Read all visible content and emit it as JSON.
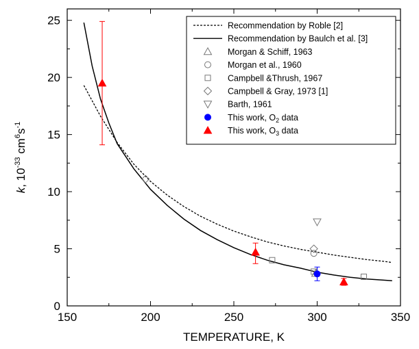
{
  "chart_data": {
    "type": "scatter",
    "xlabel": "TEMPERATURE, K",
    "ylabel_parts": {
      "symbol": "k",
      "prefix": ", 10",
      "exp1": "-33",
      "mid": " cm",
      "exp2": "6",
      "mid2": "s",
      "exp3": "-1"
    },
    "xlim": [
      150,
      350
    ],
    "ylim": [
      0,
      26
    ],
    "x_ticks": [
      150,
      200,
      250,
      300,
      350
    ],
    "y_ticks": [
      0,
      5,
      10,
      15,
      20,
      25
    ],
    "lines": [
      {
        "name": "Recommendation by Roble [2]",
        "style": "dashed",
        "color": "#000000",
        "x": [
          160,
          170,
          180,
          190,
          200,
          210,
          220,
          230,
          240,
          250,
          260,
          270,
          280,
          290,
          300,
          310,
          320,
          330,
          340,
          345
        ],
        "y": [
          19.3,
          16.6,
          14.3,
          12.4,
          10.9,
          9.7,
          8.7,
          7.85,
          7.15,
          6.55,
          6.05,
          5.6,
          5.25,
          4.95,
          4.7,
          4.45,
          4.25,
          4.05,
          3.9,
          3.8
        ]
      },
      {
        "name": "Recommendation by Baulch et al. [3]",
        "style": "solid",
        "color": "#000000",
        "x": [
          160,
          165,
          170,
          175,
          180,
          190,
          200,
          210,
          220,
          230,
          240,
          250,
          260,
          270,
          280,
          290,
          300,
          310,
          320,
          330,
          340,
          345
        ],
        "y": [
          24.8,
          21.0,
          18.1,
          16.0,
          14.2,
          12.0,
          10.2,
          8.8,
          7.6,
          6.6,
          5.8,
          5.1,
          4.5,
          4.0,
          3.6,
          3.3,
          2.95,
          2.7,
          2.5,
          2.35,
          2.25,
          2.2
        ]
      }
    ],
    "series": [
      {
        "name": "Morgan & Schiff, 1963",
        "marker": "triangle-up-open",
        "color": "#777777",
        "points": [
          {
            "x": 299,
            "y": 2.85
          }
        ]
      },
      {
        "name": "Morgan et al., 1960",
        "marker": "circle-open",
        "color": "#777777",
        "points": [
          {
            "x": 298,
            "y": 4.6
          }
        ]
      },
      {
        "name": "Campbell &Thrush, 1967",
        "marker": "square-open",
        "color": "#777777",
        "points": [
          {
            "x": 273,
            "y": 4.0
          },
          {
            "x": 298,
            "y": 3.0
          },
          {
            "x": 328,
            "y": 2.55
          }
        ]
      },
      {
        "name": "Campbell & Gray, 1973 [1]",
        "marker": "diamond-open",
        "color": "#777777",
        "points": [
          {
            "x": 197,
            "y": 11.1
          },
          {
            "x": 298,
            "y": 5.0
          }
        ]
      },
      {
        "name": "Barth, 1961",
        "marker": "triangle-down-open",
        "color": "#777777",
        "points": [
          {
            "x": 300,
            "y": 7.35
          }
        ]
      },
      {
        "name": "This work, O2 data",
        "name_base": "This work, O",
        "name_sub": "2",
        "name_tail": " data",
        "marker": "circle-filled",
        "color": "#0000ff",
        "errbar_color": "#0000ff",
        "points": [
          {
            "x": 300,
            "y": 2.8,
            "ylo": 2.2,
            "yhi": 3.4
          }
        ]
      },
      {
        "name": "This work, O3 data",
        "name_base": "This work, O",
        "name_sub": "3",
        "name_tail": " data",
        "marker": "triangle-up-filled",
        "color": "#ff0000",
        "errbar_color": "#ff0000",
        "points": [
          {
            "x": 171,
            "y": 19.5,
            "ylo": 14.1,
            "yhi": 24.9
          },
          {
            "x": 263,
            "y": 4.7,
            "ylo": 3.7,
            "yhi": 5.5
          },
          {
            "x": 316,
            "y": 2.1,
            "ylo": 1.8,
            "yhi": 2.4
          }
        ]
      }
    ],
    "legend_position": "top-right",
    "grid": false
  }
}
